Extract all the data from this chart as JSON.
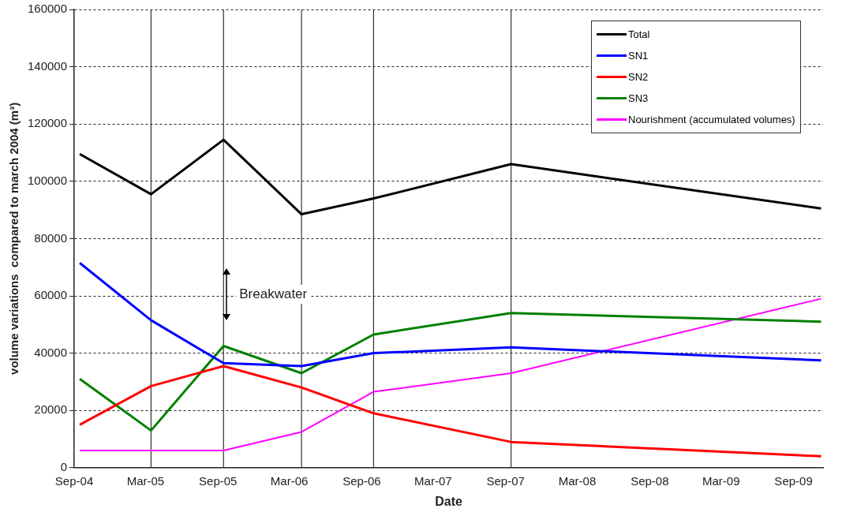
{
  "chart_data": {
    "type": "line",
    "xlabel": "Date",
    "ylabel": "volume variations  compared to march 2004 (m³)",
    "x": [
      "2004-09-15",
      "2005-03-15",
      "2005-09-15",
      "2006-04-01",
      "2006-10-01",
      "2007-09-15",
      "2009-11-10"
    ],
    "series": [
      {
        "name": "Total",
        "color": "#000000",
        "values": [
          109500,
          95500,
          114500,
          88500,
          94000,
          106000,
          90500
        ]
      },
      {
        "name": "SN1",
        "color": "#0000ff",
        "values": [
          71500,
          51500,
          36500,
          35500,
          40000,
          42000,
          37500
        ]
      },
      {
        "name": "SN2",
        "color": "#ff0000",
        "values": [
          15000,
          28500,
          35500,
          28000,
          19000,
          9000,
          4000
        ]
      },
      {
        "name": "SN3",
        "color": "#008000",
        "values": [
          31000,
          13000,
          42500,
          33000,
          46500,
          54000,
          51000
        ]
      },
      {
        "name": "Nourishment (accumulated volumes)",
        "color": "#ff00ff",
        "values": [
          6000,
          6000,
          6000,
          12500,
          26500,
          33000,
          59000
        ]
      }
    ],
    "xlim": [
      "2004-09-01",
      "2009-11-15"
    ],
    "xticks": [
      {
        "value": "2004-09-01",
        "label": "Sep-04"
      },
      {
        "value": "2005-03-01",
        "label": "Mar-05"
      },
      {
        "value": "2005-09-01",
        "label": "Sep-05"
      },
      {
        "value": "2006-03-01",
        "label": "Mar-06"
      },
      {
        "value": "2006-09-01",
        "label": "Sep-06"
      },
      {
        "value": "2007-03-01",
        "label": "Mar-07"
      },
      {
        "value": "2007-09-01",
        "label": "Sep-07"
      },
      {
        "value": "2008-03-01",
        "label": "Mar-08"
      },
      {
        "value": "2008-09-01",
        "label": "Sep-08"
      },
      {
        "value": "2009-03-01",
        "label": "Mar-09"
      },
      {
        "value": "2009-09-01",
        "label": "Sep-09"
      }
    ],
    "ylim": [
      0,
      160000
    ],
    "yticks": [
      0,
      20000,
      40000,
      60000,
      80000,
      100000,
      120000,
      140000,
      160000
    ],
    "ref_lines": [
      {
        "axis": "x",
        "value": "2005-03-15",
        "color": "#333333"
      },
      {
        "axis": "x",
        "value": "2005-09-15",
        "color": "#333333"
      },
      {
        "axis": "x",
        "value": "2006-04-01",
        "color": "#333333"
      },
      {
        "axis": "x",
        "value": "2006-10-01",
        "color": "#333333"
      },
      {
        "axis": "x",
        "value": "2007-09-15",
        "color": "#333333"
      }
    ],
    "annotations": [
      {
        "text": "Breakwater",
        "x": "2005-09-15",
        "y": 60000
      }
    ],
    "grid": "y",
    "legend": "top right",
    "marker": "none",
    "line_style": "solid"
  }
}
